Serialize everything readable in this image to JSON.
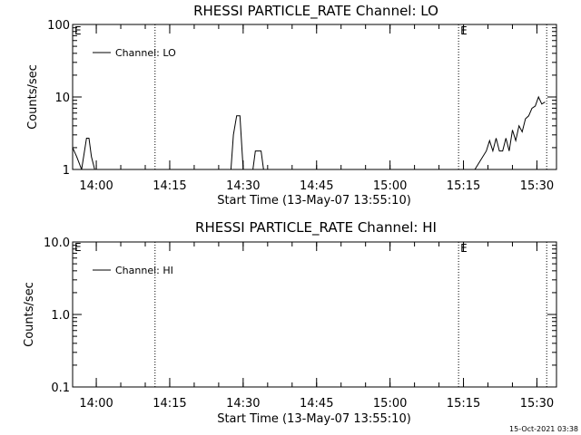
{
  "chart_data": [
    {
      "type": "line",
      "title": "RHESSI PARTICLE_RATE Channel: LO",
      "xlabel": "Start Time (13-May-07 13:55:10)",
      "ylabel": "Counts/sec",
      "yscale": "log",
      "ylim": [
        1,
        100
      ],
      "xlim": [
        "13:55:10",
        "15:34:00"
      ],
      "ytick_labels": [
        "100",
        "10",
        "1"
      ],
      "xtick_labels": [
        "14:00",
        "14:15",
        "14:30",
        "14:45",
        "15:00",
        "15:15",
        "15:30"
      ],
      "legend": {
        "placement": "top-left",
        "entries": [
          "Channel: LO"
        ]
      },
      "event_lines": [
        {
          "time": "14:12",
          "label": ""
        },
        {
          "time": "15:14",
          "label": "E"
        },
        {
          "time": "15:32",
          "label": ""
        }
      ],
      "corner_label": "E",
      "series": [
        {
          "name": "Channel: LO",
          "x": [
            "13:55:10",
            "13:56:00",
            "13:57:00",
            "13:58:00",
            "13:58:30",
            "13:59:00",
            "13:59:40",
            "14:00:30",
            "14:27:30",
            "14:28:00",
            "14:28:40",
            "14:29:20",
            "14:30:00",
            "14:32:00",
            "14:32:30",
            "14:33:40",
            "14:34:10",
            "15:17:20",
            "15:19:40",
            "15:20:20",
            "15:21:00",
            "15:21:40",
            "15:22:20",
            "15:23:00",
            "15:23:40",
            "15:24:20",
            "15:25:00",
            "15:25:40",
            "15:26:20",
            "15:27:00",
            "15:27:40",
            "15:28:20",
            "15:29:00",
            "15:29:40",
            "15:30:20",
            "15:31:00",
            "15:31:40"
          ],
          "y": [
            2,
            1.5,
            1,
            2.7,
            2.7,
            1.5,
            1,
            1,
            1,
            3,
            5.5,
            5.5,
            1,
            1,
            1.8,
            1.8,
            1,
            1,
            1.8,
            2.5,
            1.8,
            2.7,
            1.8,
            1.8,
            2.7,
            1.8,
            3.5,
            2.5,
            4,
            3.3,
            5,
            5.5,
            7,
            7.5,
            10,
            8,
            8.5
          ]
        }
      ]
    },
    {
      "type": "line",
      "title": "RHESSI PARTICLE_RATE Channel: HI",
      "xlabel": "Start Time (13-May-07 13:55:10)",
      "ylabel": "Counts/sec",
      "yscale": "log",
      "ylim": [
        0.1,
        10
      ],
      "xlim": [
        "13:55:10",
        "15:34:00"
      ],
      "ytick_labels": [
        "10.0",
        "1.0",
        "0.1"
      ],
      "xtick_labels": [
        "14:00",
        "14:15",
        "14:30",
        "14:45",
        "15:00",
        "15:15",
        "15:30"
      ],
      "legend": {
        "placement": "top-left",
        "entries": [
          "Channel: HI"
        ]
      },
      "event_lines": [
        {
          "time": "14:12",
          "label": ""
        },
        {
          "time": "15:14",
          "label": "E"
        },
        {
          "time": "15:32",
          "label": ""
        }
      ],
      "corner_label": "E",
      "series": [
        {
          "name": "Channel: HI",
          "x": [],
          "y": []
        }
      ]
    }
  ],
  "timestamp": "15-Oct-2021 03:38"
}
